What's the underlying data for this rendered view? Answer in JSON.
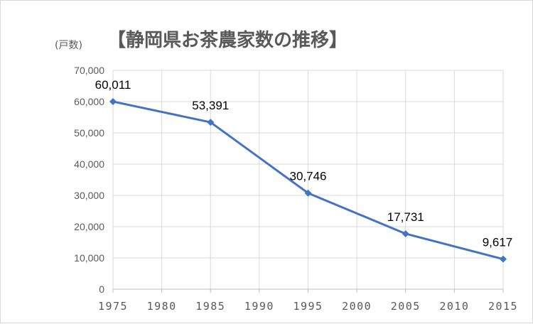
{
  "chart_data": {
    "type": "line",
    "title": "【静岡県お茶農家数の推移】",
    "unit_label": "(戸数)",
    "xlabel": "",
    "ylabel": "",
    "x_ticks": [
      "1975",
      "1980",
      "1985",
      "1990",
      "1995",
      "2000",
      "2005",
      "2010",
      "2015"
    ],
    "xlim": [
      1975,
      2015
    ],
    "ylim": [
      0,
      70000
    ],
    "y_ticks": [
      "0",
      "10,000",
      "20,000",
      "30,000",
      "40,000",
      "50,000",
      "60,000",
      "70,000"
    ],
    "grid": true,
    "series": [
      {
        "color": "#4472C4",
        "points": [
          {
            "x": 1975,
            "y": 60011,
            "label": "60,011"
          },
          {
            "x": 1985,
            "y": 53391,
            "label": "53,391"
          },
          {
            "x": 1995,
            "y": 30746,
            "label": "30,746"
          },
          {
            "x": 2005,
            "y": 17731,
            "label": "17,731"
          },
          {
            "x": 2015,
            "y": 9617,
            "label": "9,617"
          }
        ]
      }
    ]
  }
}
